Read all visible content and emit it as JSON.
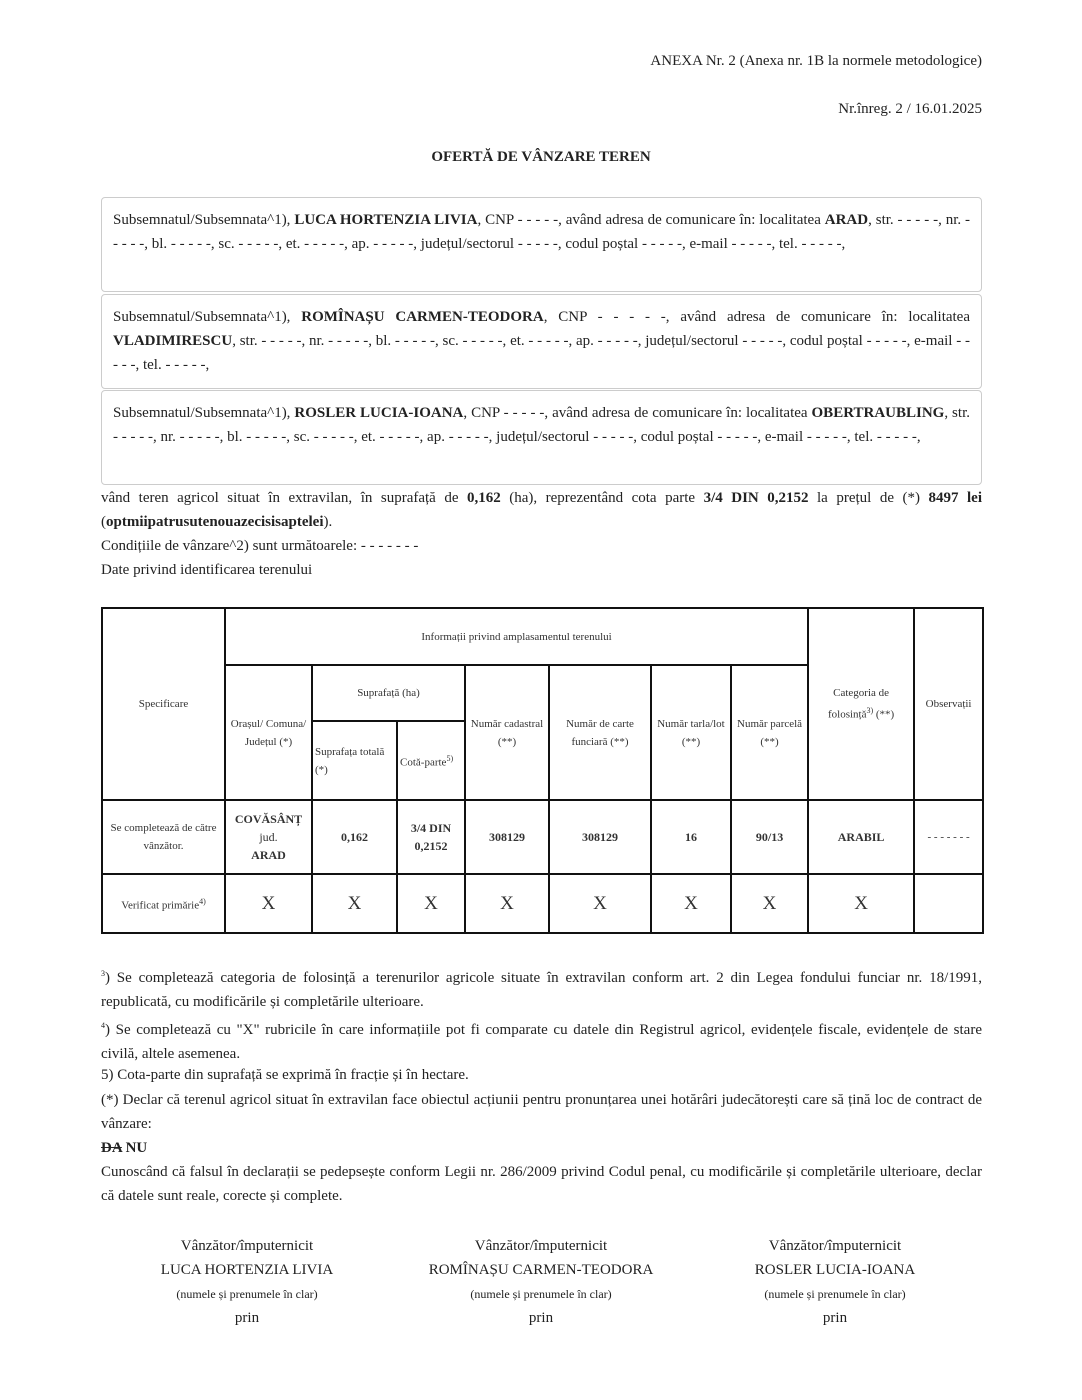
{
  "header": {
    "annex": "ANEXA Nr. 2 (Anexa nr. 1B la normele metodologice)",
    "registration": "Nr.înreg. 2 / 16.01.2025",
    "title": "OFERTĂ DE VÂNZARE TEREN"
  },
  "persons": [
    {
      "prefix": "Subsemnatul/Subsemnata^1), ",
      "name": "LUCA HORTENZIA LIVIA",
      "mid": ", CNP - - - - -, având adresa de comunicare în: localitatea ",
      "locality": "ARAD",
      "rest": ", str. - - - - -, nr. - - - - -, bl. - - - - -, sc. - - - - -, et. - - - - -, ap. - - - - -, județul/sectorul - - - - -, codul poștal - - - - -, e-mail - - - - -, tel. - - - - -,"
    },
    {
      "prefix": "Subsemnatul/Subsemnata^1), ",
      "name": "ROMÎNAȘU CARMEN-TEODORA",
      "mid": ", CNP - - - - -, având adresa de comunicare în: localitatea ",
      "locality": "VLADIMIRESCU",
      "rest": ", str. - - - - -, nr. - - - - -, bl. - - - - -, sc. - - - - -, et. - - - - -, ap. - - - - -, județul/sectorul - - - - -, codul poștal - - - - -, e-mail - - - - -, tel. - - - - -,"
    },
    {
      "prefix": "Subsemnatul/Subsemnata^1), ",
      "name": "ROSLER LUCIA-IOANA",
      "mid": ", CNP - - - - -, având adresa de comunicare în: localitatea ",
      "locality": "OBERTRAUBLING",
      "rest": ", str. - - - - -, nr. - - - - -, bl. - - - - -, sc. - - - - -, et. - - - - -, ap. - - - - -, județul/sectorul - - - - -, codul poștal - - - - -, e-mail - - - - -, tel. - - - - -,"
    }
  ],
  "offer": {
    "t1": "vând teren agricol situat în extravilan, în suprafață de ",
    "area": "0,162",
    "t2": " (ha), reprezentând cota parte ",
    "share": "3/4 DIN 0,2152",
    "t3": " la prețul de (*) ",
    "price": "8497 lei",
    "t4": " (",
    "price_words": "optmiipatrusutenouazecisisaptelei",
    "t5": ").",
    "conditions": "Condițiile de vânzare^2) sunt următoarele: - - - - - - -",
    "identification": "Date privind identificarea terenului"
  },
  "table": {
    "h_spec": "Specificare",
    "h_info": "Informații privind amplasamentul terenului",
    "h_city": "Orașul/ Comuna/ Județul (*)",
    "h_area": "Suprafață (ha)",
    "h_total": "Suprafața totală (*)",
    "h_share": "Cotă-parte",
    "h_share_sup": "5)",
    "h_cadastral": "Număr cadastral (**)",
    "h_land_book": "Număr de carte funciară (**)",
    "h_tarla": "Număr tarla/lot (**)",
    "h_parcel": "Număr parcelă (**)",
    "h_category": "Categoria de folosință",
    "h_category_sup": "3)",
    "h_category_suffix": " (**)",
    "h_obs": "Observații",
    "seller_label": "Se completează de către vânzător.",
    "seller": {
      "city": "COVĂSÂNȚ",
      "jud": "jud.",
      "county": "ARAD",
      "total": "0,162",
      "share": "3/4 DIN 0,2152",
      "cadastral": "308129",
      "land_book": "308129",
      "tarla": "16",
      "parcel": "90/13",
      "category": "ARABIL",
      "obs": "- - - - - - -"
    },
    "verified_label": "Verificat primărie",
    "verified_sup": "4)",
    "mark": "X"
  },
  "footnotes": {
    "n3_sup": "3",
    "n3": ") Se completează categoria de folosință a terenurilor agricole situate în extravilan conform art. 2 din Legea fondului funciar nr. 18/1991, republicată, cu modificările și completările ulterioare.",
    "n4_sup": "4",
    "n4": ") Se completează cu \"X\" rubricile în care informațiile pot fi comparate cu datele din Registrul agricol, evidențele fiscale, evidențele de stare civilă, altele asemenea.",
    "n5": "5) Cota-parte din suprafață se exprimă în fracție și în hectare.",
    "declare": "(*) Declar că terenul agricol situat în extravilan face obiectul acțiunii pentru pronunțarea unei hotărâri judecătorești care să țină loc de contract de vânzare:",
    "da": "DA",
    "nu": "NU",
    "penal": "Cunoscând că falsul în declarații se pedepsește conform Legii nr. 286/2009 privind Codul penal, cu modificările și completările ulterioare, declar că datele sunt reale, corecte și complete."
  },
  "signatures": [
    {
      "role": "Vânzător/împuternicit",
      "name": "LUCA HORTENZIA LIVIA",
      "hint": "(numele și prenumele în clar)",
      "by": "prin"
    },
    {
      "role": "Vânzător/împuternicit",
      "name": "ROMÎNAȘU CARMEN-TEODORA",
      "hint": "(numele și prenumele în clar)",
      "by": "prin"
    },
    {
      "role": "Vânzător/împuternicit",
      "name": "ROSLER LUCIA-IOANA",
      "hint": "(numele și prenumele în clar)",
      "by": "prin"
    }
  ]
}
